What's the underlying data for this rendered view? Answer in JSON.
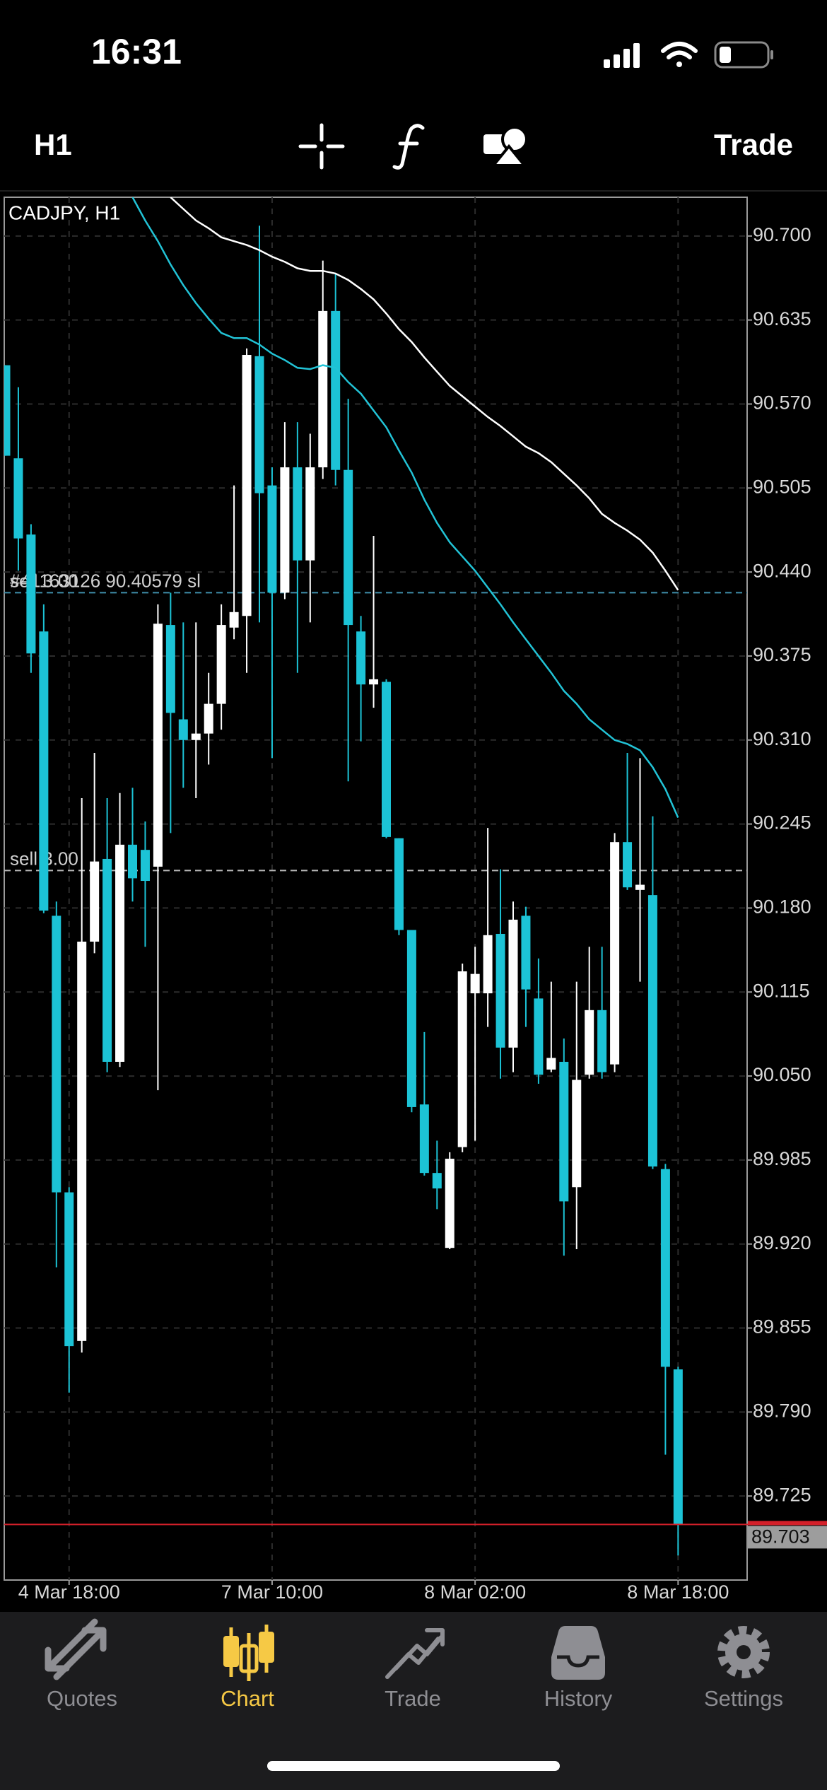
{
  "status_bar": {
    "time": "16:31"
  },
  "toolbar": {
    "timeframe": "H1",
    "trade": "Trade"
  },
  "chart_data": {
    "type": "candlestick",
    "title": "CADJPY, H1",
    "categories": [
      null,
      null,
      null,
      null,
      null,
      "4 Mar 18:00",
      null,
      null,
      null,
      null,
      null,
      null,
      null,
      null,
      null,
      null,
      null,
      null,
      null,
      null,
      null,
      "7 Mar 10:00",
      null,
      null,
      null,
      null,
      null,
      null,
      null,
      null,
      null,
      null,
      null,
      null,
      null,
      null,
      null,
      "8 Mar 02:00",
      null,
      null,
      null,
      null,
      null,
      null,
      null,
      null,
      null,
      null,
      null,
      null,
      null,
      null,
      null,
      "8 Mar 18:00"
    ],
    "open": [
      90.6,
      90.528,
      90.469,
      90.394,
      90.174,
      89.96,
      89.845,
      90.154,
      90.218,
      90.061,
      90.229,
      90.225,
      90.212,
      90.399,
      90.326,
      90.31,
      90.315,
      90.338,
      90.397,
      90.406,
      90.607,
      90.507,
      90.424,
      90.521,
      90.449,
      90.521,
      90.642,
      90.519,
      90.394,
      90.353,
      90.355,
      90.234,
      90.163,
      90.028,
      89.975,
      89.917,
      89.995,
      90.114,
      90.114,
      90.16,
      90.072,
      90.174,
      90.11,
      90.055,
      90.061,
      89.964,
      90.051,
      90.101,
      90.059,
      90.231,
      90.194,
      90.19,
      89.978,
      89.823
    ],
    "high": [
      90.6,
      90.583,
      90.477,
      90.415,
      90.185,
      89.964,
      90.265,
      90.3,
      90.265,
      90.269,
      90.273,
      90.247,
      90.415,
      90.424,
      90.401,
      90.401,
      90.362,
      90.415,
      90.507,
      90.613,
      90.708,
      90.521,
      90.556,
      90.556,
      90.547,
      90.681,
      90.671,
      90.574,
      90.406,
      90.468,
      90.357,
      90.234,
      90.163,
      90.084,
      90.0,
      89.991,
      90.137,
      90.15,
      90.242,
      90.21,
      90.185,
      90.181,
      90.141,
      90.123,
      90.079,
      90.123,
      90.15,
      90.15,
      90.238,
      90.3,
      90.296,
      90.251,
      89.982,
      89.825
    ],
    "low": [
      90.53,
      90.441,
      90.362,
      90.176,
      89.902,
      89.805,
      89.836,
      90.145,
      90.053,
      90.057,
      90.185,
      90.15,
      90.039,
      90.238,
      90.273,
      90.265,
      90.291,
      90.318,
      90.388,
      90.362,
      90.401,
      90.296,
      90.419,
      90.362,
      90.401,
      90.512,
      90.507,
      90.278,
      90.309,
      90.335,
      90.234,
      90.159,
      90.022,
      89.973,
      89.947,
      89.916,
      89.991,
      90.0,
      90.088,
      90.048,
      90.053,
      90.088,
      90.044,
      90.053,
      89.911,
      89.916,
      90.048,
      90.048,
      90.053,
      90.194,
      90.123,
      89.978,
      89.757,
      89.679
    ],
    "close": [
      90.53,
      90.466,
      90.377,
      90.178,
      89.96,
      89.841,
      90.154,
      90.216,
      90.061,
      90.229,
      90.203,
      90.201,
      90.4,
      90.331,
      90.31,
      90.315,
      90.338,
      90.399,
      90.409,
      90.608,
      90.501,
      90.424,
      90.521,
      90.449,
      90.521,
      90.642,
      90.519,
      90.399,
      90.353,
      90.357,
      90.235,
      90.163,
      90.026,
      89.975,
      89.963,
      89.986,
      90.131,
      90.129,
      90.159,
      90.072,
      90.171,
      90.117,
      90.051,
      90.064,
      89.953,
      90.047,
      90.101,
      90.053,
      90.231,
      90.196,
      90.198,
      89.98,
      89.825,
      89.703
    ],
    "up_color": "#ffffff",
    "down_color": "#1cc3d6",
    "lines": [
      {
        "color": "#ffffff",
        "values": [
          null,
          null,
          null,
          null,
          null,
          null,
          null,
          null,
          null,
          null,
          null,
          null,
          null,
          90.73,
          90.721,
          90.712,
          90.706,
          90.699,
          90.696,
          90.693,
          90.689,
          90.684,
          90.68,
          90.675,
          90.673,
          90.673,
          90.671,
          90.666,
          90.659,
          90.651,
          90.64,
          90.628,
          90.618,
          90.606,
          90.595,
          90.584,
          90.576,
          90.568,
          90.56,
          90.553,
          90.545,
          90.537,
          90.532,
          90.525,
          90.516,
          90.507,
          90.497,
          90.485,
          90.478,
          90.472,
          90.465,
          90.455,
          90.441,
          90.426
        ]
      },
      {
        "color": "#22c3d6",
        "values": [
          null,
          null,
          null,
          null,
          null,
          null,
          null,
          null,
          null,
          null,
          90.73,
          90.712,
          90.696,
          90.678,
          90.662,
          90.648,
          90.636,
          90.625,
          90.621,
          90.621,
          90.616,
          90.609,
          90.604,
          90.598,
          90.597,
          90.6,
          90.598,
          90.587,
          90.578,
          90.565,
          90.552,
          90.534,
          90.517,
          90.496,
          90.478,
          90.463,
          90.452,
          90.441,
          90.428,
          90.415,
          90.401,
          90.388,
          90.375,
          90.362,
          90.348,
          90.338,
          90.326,
          90.318,
          90.31,
          90.307,
          90.302,
          90.289,
          90.272,
          90.25
        ]
      }
    ],
    "levels": [
      {
        "value": 90.424,
        "color": "#3f8fab",
        "labels": [
          "sell 3.00",
          "#41163126 90.40579 sl"
        ]
      },
      {
        "value": 90.209,
        "color": "#b8b8b8",
        "labels": [
          "sell 3.00"
        ]
      }
    ],
    "last_price": 89.703,
    "last_price_color": "#d4202a",
    "ylim": [
      89.66,
      90.73
    ],
    "yticks": [
      {
        "value": 90.7,
        "label": "90.700"
      },
      90.635,
      {
        "value": 90.57,
        "label": "90.570"
      },
      90.505,
      {
        "value": 90.44,
        "label": "90.440"
      },
      90.375,
      {
        "value": 90.31,
        "label": "90.310"
      },
      90.245,
      {
        "value": 90.18,
        "label": "90.180"
      },
      90.115,
      {
        "value": 90.05,
        "label": "90.050"
      },
      89.985,
      {
        "value": 89.92,
        "label": "89.920"
      },
      89.855,
      {
        "value": 89.79,
        "label": "89.790"
      },
      89.725
    ],
    "grid": true
  },
  "tab_bar": {
    "tabs": [
      {
        "label": "Quotes",
        "color": "#8e8e93"
      },
      {
        "label": "Chart",
        "color": "#f6c945"
      },
      {
        "label": "Trade",
        "color": "#8e8e93"
      },
      {
        "label": "History",
        "color": "#8e8e93"
      },
      {
        "label": "Settings",
        "color": "#8e8e93"
      }
    ]
  }
}
